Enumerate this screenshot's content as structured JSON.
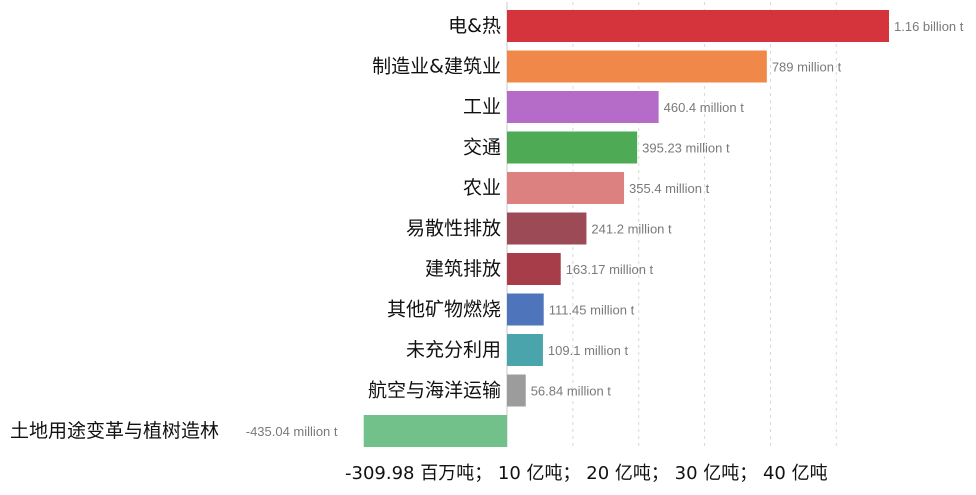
{
  "chart_data": {
    "type": "bar",
    "orientation": "horizontal",
    "categories": [
      "电&热",
      "制造业&建筑业",
      "工业",
      "交通",
      "农业",
      "易散性排放",
      "建筑排放",
      "其他矿物燃烧",
      "未充分利用",
      "航空与海洋运输",
      "土地用途变革与植树造林"
    ],
    "values": [
      1160,
      789,
      460.4,
      395.23,
      355.4,
      241.2,
      163.17,
      111.45,
      109.1,
      56.84,
      -435.04
    ],
    "value_labels": [
      "1.16 billion t",
      "789 million t",
      "460.4 million t",
      "395.23 million t",
      "355.4 million t",
      "241.2 million t",
      "163.17 million t",
      "111.45 million t",
      "109.1 million t",
      "56.84 million t",
      "-435.04 million t"
    ],
    "colors": [
      "#d6343c",
      "#f0884a",
      "#b56bc8",
      "#4eaa55",
      "#dc817f",
      "#9c4a55",
      "#a83d4a",
      "#4e74bb",
      "#49a5ab",
      "#9c9c9c",
      "#72c08a"
    ],
    "xlim": [
      -435.04,
      1160
    ],
    "xticks": [
      0,
      200,
      400,
      600,
      800,
      1000
    ],
    "grid": true,
    "tick_label_text": "-309.98 百万吨； 10 亿吨； 20 亿吨； 30 亿吨； 40 亿吨"
  }
}
